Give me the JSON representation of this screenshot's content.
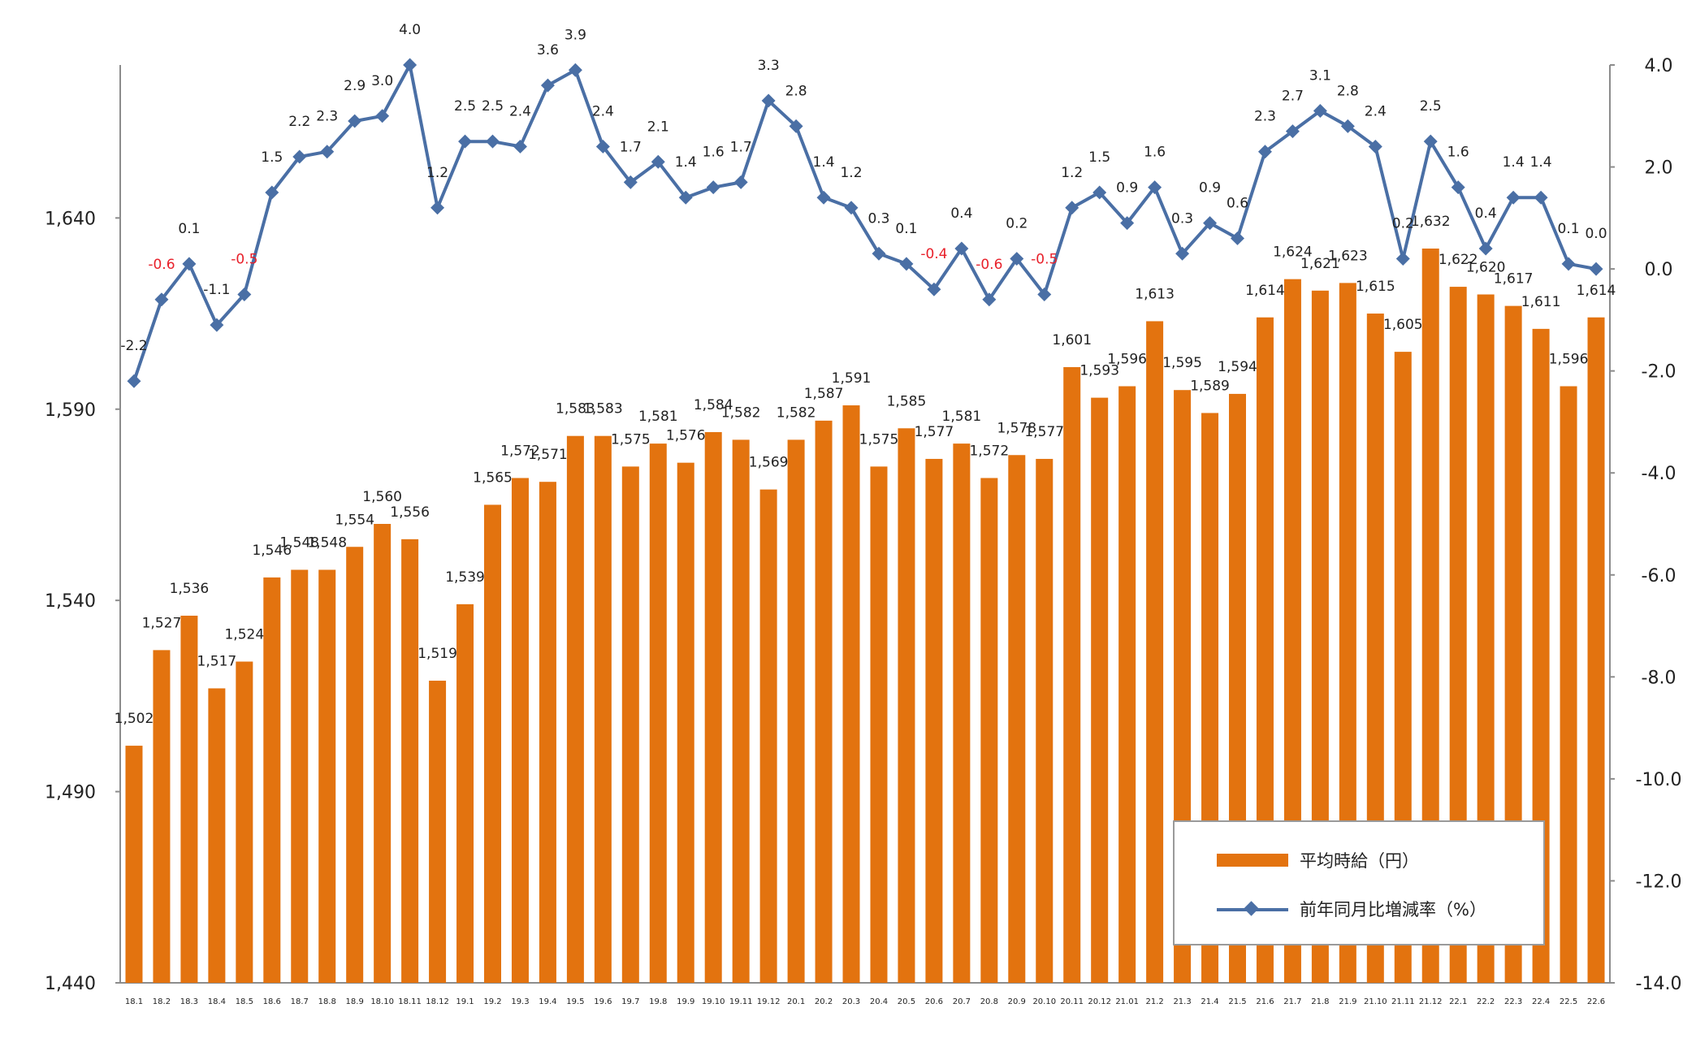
{
  "chart_data": {
    "type": "bar+line",
    "categories": [
      "18.1",
      "18.2",
      "18.3",
      "18.4",
      "18.5",
      "18.6",
      "18.7",
      "18.8",
      "18.9",
      "18.10",
      "18.11",
      "18.12",
      "19.1",
      "19.2",
      "19.3",
      "19.4",
      "19.5",
      "19.6",
      "19.7",
      "19.8",
      "19.9",
      "19.10",
      "19.11",
      "19.12",
      "20.1",
      "20.2",
      "20.3",
      "20.4",
      "20.5",
      "20.6",
      "20.7",
      "20.8",
      "20.9",
      "20.10",
      "20.11",
      "20.12",
      "21.01",
      "21.2",
      "21.3",
      "21.4",
      "21.5",
      "21.6",
      "21.7",
      "21.8",
      "21.9",
      "21.10",
      "21.11",
      "21.12",
      "22.1",
      "22.2",
      "22.3",
      "22.4",
      "22.5",
      "22.6"
    ],
    "series": [
      {
        "name": "平均時給（円）",
        "type": "bar",
        "axis": "left",
        "color": "#e3730f",
        "values": [
          1502,
          1527,
          1536,
          1517,
          1524,
          1546,
          1548,
          1548,
          1554,
          1560,
          1556,
          1519,
          1539,
          1565,
          1572,
          1571,
          1583,
          1583,
          1575,
          1581,
          1576,
          1584,
          1582,
          1569,
          1582,
          1587,
          1591,
          1575,
          1585,
          1577,
          1581,
          1572,
          1578,
          1577,
          1601,
          1593,
          1596,
          1613,
          1595,
          1589,
          1594,
          1614,
          1624,
          1621,
          1623,
          1615,
          1605,
          1632,
          1622,
          1620,
          1617,
          1611,
          1596,
          1614
        ],
        "labels": [
          "1,502",
          "1,527",
          "1,536",
          "1,517",
          "1,524",
          "1,546",
          "1,548",
          "1,548",
          "1,554",
          "1,560",
          "1,556",
          "1,519",
          "1,539",
          "1,565",
          "1,572",
          "1,571",
          "1,583",
          "1,583",
          "1,575",
          "1,581",
          "1,576",
          "1,584",
          "1,582",
          "1,569",
          "1,582",
          "1,587",
          "1,591",
          "1,575",
          "1,585",
          "1,577",
          "1,581",
          "1,572",
          "1,578",
          "1,577",
          "1,601",
          "1,593",
          "1,596",
          "1,613",
          "1,595",
          "1,589",
          "1,594",
          "1,614",
          "1,624",
          "1,621",
          "1,623",
          "1,615",
          "1,605",
          "1,632",
          "1,622",
          "1,620",
          "1,617",
          "1,611",
          "1,596",
          "1,614"
        ]
      },
      {
        "name": "前年同月比増減率（%）",
        "type": "line",
        "axis": "right",
        "color": "#4a6fa5",
        "values": [
          -2.2,
          -0.6,
          0.1,
          -1.1,
          -0.5,
          1.5,
          2.2,
          2.3,
          2.9,
          3.0,
          4.0,
          1.2,
          2.5,
          2.5,
          2.4,
          3.6,
          3.9,
          2.4,
          1.7,
          2.1,
          1.4,
          1.6,
          1.7,
          3.3,
          2.8,
          1.4,
          1.2,
          0.3,
          0.1,
          -0.4,
          0.4,
          -0.6,
          0.2,
          -0.5,
          1.2,
          1.5,
          0.9,
          1.6,
          0.3,
          0.9,
          0.6,
          2.3,
          2.7,
          3.1,
          2.8,
          2.4,
          0.2,
          2.5,
          1.6,
          0.4,
          1.4,
          1.4,
          0.1,
          0.0
        ],
        "labels": [
          "-2.2",
          "-0.6",
          "0.1",
          "-1.1",
          "-0.5",
          "1.5",
          "2.2",
          "2.3",
          "2.9",
          "3.0",
          "4.0",
          "1.2",
          "2.5",
          "2.5",
          "2.4",
          "3.6",
          "3.9",
          "2.4",
          "1.7",
          "2.1",
          "1.4",
          "1.6",
          "1.7",
          "3.3",
          "2.8",
          "1.4",
          "1.2",
          "0.3",
          "0.1",
          "-0.4",
          "0.4",
          "-0.6",
          "0.2",
          "-0.5",
          "1.2",
          "1.5",
          "0.9",
          "1.6",
          "0.3",
          "0.9",
          "0.6",
          "2.3",
          "2.7",
          "3.1",
          "2.8",
          "2.4",
          "0.2",
          "2.5",
          "1.6",
          "0.4",
          "1.4",
          "1.4",
          "0.1",
          "0.0"
        ],
        "negative_label_color": "#e8202a",
        "red_labels": [
          "-0.4",
          "-0.6",
          "-0.5"
        ]
      }
    ],
    "y_left": {
      "ylim": [
        1440,
        1680
      ],
      "ticks": [
        "1,440",
        "1,490",
        "1,540",
        "1,590",
        "1,640"
      ],
      "tick_values": [
        1440,
        1490,
        1540,
        1590,
        1640
      ]
    },
    "y_right": {
      "ylim": [
        -14.0,
        4.0
      ],
      "ticks": [
        "-14.0",
        "-12.0",
        "-10.0",
        "-8.0",
        "-6.0",
        "-4.0",
        "-2.0",
        "0.0",
        "2.0",
        "4.0"
      ],
      "tick_values": [
        -14,
        -12,
        -10,
        -8,
        -6,
        -4,
        -2,
        0,
        2,
        4
      ]
    },
    "grid": false,
    "legend_position": "bottom-right"
  },
  "legend": {
    "bar_label": "平均時給（円）",
    "line_label": "前年同月比増減率（%）"
  }
}
